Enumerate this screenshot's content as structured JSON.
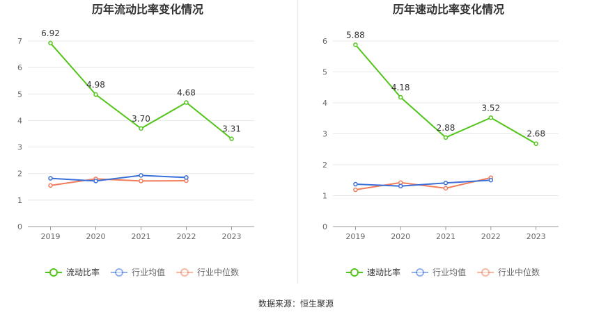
{
  "source_label": "数据来源：恒生聚源",
  "chart_data": [
    {
      "type": "line",
      "title": "历年流动比率变化情况",
      "categories": [
        "2019",
        "2020",
        "2021",
        "2022",
        "2023"
      ],
      "ylim": [
        0,
        7
      ],
      "yticks": [
        0,
        1,
        2,
        3,
        4,
        5,
        6,
        7
      ],
      "grid": true,
      "legend_position": "bottom",
      "series": [
        {
          "name": "流动比率",
          "color": "#52c41a",
          "values": [
            6.92,
            4.98,
            3.7,
            4.68,
            3.31
          ],
          "data_labels": [
            "6.92",
            "4.98",
            "3.70",
            "4.68",
            "3.31"
          ]
        },
        {
          "name": "行业均值",
          "color": "#3a6fd8",
          "values": [
            1.82,
            1.72,
            1.93,
            1.85,
            null
          ]
        },
        {
          "name": "行业中位数",
          "color": "#f07c5a",
          "values": [
            1.55,
            1.8,
            1.72,
            1.73,
            null
          ]
        }
      ]
    },
    {
      "type": "line",
      "title": "历年速动比率变化情况",
      "categories": [
        "2019",
        "2020",
        "2021",
        "2022",
        "2023"
      ],
      "ylim": [
        0,
        6
      ],
      "yticks": [
        0,
        1,
        2,
        3,
        4,
        5,
        6
      ],
      "grid": true,
      "legend_position": "bottom",
      "series": [
        {
          "name": "速动比率",
          "color": "#52c41a",
          "values": [
            5.88,
            4.18,
            2.88,
            3.52,
            2.68
          ],
          "data_labels": [
            "5.88",
            "4.18",
            "2.88",
            "3.52",
            "2.68"
          ]
        },
        {
          "name": "行业均值",
          "color": "#3a6fd8",
          "values": [
            1.37,
            1.31,
            1.41,
            1.5,
            null
          ]
        },
        {
          "name": "行业中位数",
          "color": "#f07c5a",
          "values": [
            1.19,
            1.42,
            1.24,
            1.58,
            null
          ]
        }
      ]
    }
  ]
}
